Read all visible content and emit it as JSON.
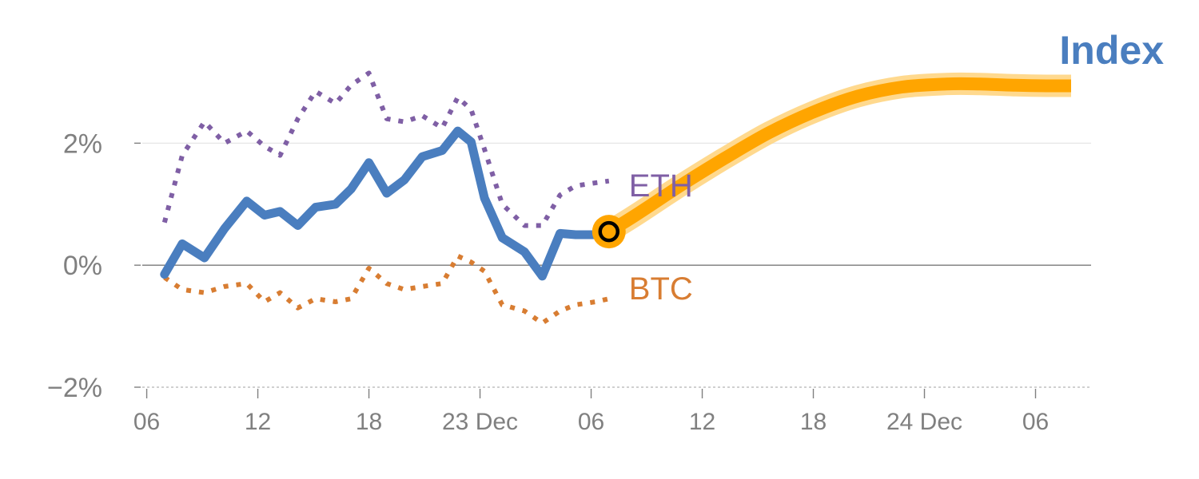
{
  "colors": {
    "index": "#4A7EBF",
    "eth": "#7F5FA5",
    "btc": "#D87D32",
    "forecast": "#FFA500",
    "forecast_glow": "#FFD27A",
    "axis": "#808080",
    "grid": "#e6e6e6"
  },
  "chart_data": {
    "type": "line",
    "title": "Index",
    "xlabel": "",
    "ylabel": "",
    "ylim": [
      -2,
      3.3
    ],
    "xlim": [
      -0.2,
      42.5
    ],
    "y_ticks": [
      {
        "value": 2,
        "label": "2%"
      },
      {
        "value": 0,
        "label": "0%"
      },
      {
        "value": -2,
        "label": "−2%"
      }
    ],
    "x_ticks": [
      {
        "value": 0,
        "label": "06"
      },
      {
        "value": 5,
        "label": "12"
      },
      {
        "value": 10,
        "label": "18"
      },
      {
        "value": 15,
        "label": "23 Dec"
      },
      {
        "value": 20,
        "label": "06"
      },
      {
        "value": 25,
        "label": "12"
      },
      {
        "value": 30,
        "label": "18"
      },
      {
        "value": 35,
        "label": "24 Dec"
      },
      {
        "value": 40,
        "label": "06"
      }
    ],
    "series": [
      {
        "name": "Index",
        "style": "solid",
        "x": [
          0.8,
          1.6,
          2.6,
          3.5,
          4.5,
          5.3,
          6.0,
          6.8,
          7.6,
          8.5,
          9.2,
          10.0,
          10.8,
          11.6,
          12.4,
          13.3,
          14.0,
          14.6,
          15.2,
          16.0,
          17.0,
          17.8,
          18.6,
          19.3,
          20.2,
          20.8
        ],
        "y": [
          -0.15,
          0.35,
          0.12,
          0.6,
          1.05,
          0.82,
          0.88,
          0.65,
          0.95,
          1.0,
          1.25,
          1.68,
          1.18,
          1.4,
          1.78,
          1.88,
          2.2,
          2.02,
          1.1,
          0.45,
          0.22,
          -0.18,
          0.52,
          0.5,
          0.5,
          0.55
        ]
      },
      {
        "name": "ETH",
        "label": "ETH",
        "style": "dotted",
        "x": [
          0.8,
          1.6,
          2.6,
          3.5,
          4.5,
          5.3,
          6.0,
          6.8,
          7.6,
          8.5,
          9.2,
          10.0,
          10.8,
          11.6,
          12.4,
          13.3,
          14.0,
          14.6,
          15.2,
          16.0,
          17.0,
          17.8,
          18.6,
          19.3,
          20.2,
          20.8
        ],
        "y": [
          0.7,
          1.8,
          2.35,
          2.0,
          2.2,
          1.95,
          1.8,
          2.4,
          2.85,
          2.65,
          2.95,
          3.15,
          2.4,
          2.35,
          2.45,
          2.25,
          2.75,
          2.55,
          1.9,
          1.0,
          0.65,
          0.65,
          1.15,
          1.3,
          1.35,
          1.38
        ]
      },
      {
        "name": "BTC",
        "label": "BTC",
        "style": "dotted",
        "x": [
          0.8,
          1.6,
          2.6,
          3.5,
          4.5,
          5.3,
          6.0,
          6.8,
          7.6,
          8.5,
          9.2,
          10.0,
          10.8,
          11.6,
          12.4,
          13.3,
          14.0,
          14.6,
          15.2,
          16.0,
          17.0,
          17.8,
          18.6,
          19.3,
          20.2,
          20.8
        ],
        "y": [
          -0.2,
          -0.4,
          -0.45,
          -0.35,
          -0.3,
          -0.6,
          -0.45,
          -0.7,
          -0.55,
          -0.6,
          -0.55,
          -0.05,
          -0.3,
          -0.4,
          -0.35,
          -0.3,
          0.15,
          0.05,
          -0.1,
          -0.65,
          -0.75,
          -0.95,
          -0.75,
          -0.65,
          -0.6,
          -0.55
        ]
      },
      {
        "name": "Forecast",
        "style": "band",
        "x": [
          20.8,
          22,
          24,
          26,
          28,
          30,
          32,
          34,
          36,
          37.5,
          39,
          40.5,
          41.6
        ],
        "y": [
          0.55,
          0.82,
          1.3,
          1.75,
          2.17,
          2.51,
          2.77,
          2.92,
          2.97,
          2.97,
          2.95,
          2.94,
          2.94
        ]
      }
    ],
    "marker": {
      "x": 20.8,
      "y": 0.55
    }
  }
}
